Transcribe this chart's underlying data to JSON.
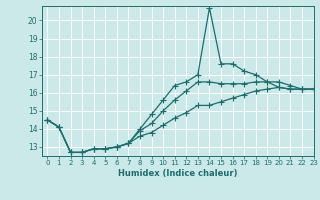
{
  "xlabel": "Humidex (Indice chaleur)",
  "xlim": [
    -0.5,
    23
  ],
  "ylim": [
    12.5,
    20.8
  ],
  "yticks": [
    13,
    14,
    15,
    16,
    17,
    18,
    19,
    20
  ],
  "xticks": [
    0,
    1,
    2,
    3,
    4,
    5,
    6,
    7,
    8,
    9,
    10,
    11,
    12,
    13,
    14,
    15,
    16,
    17,
    18,
    19,
    20,
    21,
    22,
    23
  ],
  "bg_color": "#cce9e9",
  "line_color": "#1a6e6e",
  "grid_color": "#ffffff",
  "series": {
    "upper": [
      14.5,
      14.1,
      12.7,
      12.7,
      12.9,
      12.9,
      13.0,
      13.2,
      14.0,
      14.8,
      15.6,
      16.4,
      16.6,
      17.0,
      20.7,
      17.6,
      17.6,
      17.2,
      17.0,
      16.6,
      16.3,
      16.2,
      16.2,
      16.2
    ],
    "mid": [
      14.5,
      14.1,
      12.7,
      12.7,
      12.9,
      12.9,
      13.0,
      13.2,
      13.9,
      14.3,
      15.0,
      15.6,
      16.1,
      16.6,
      16.6,
      16.5,
      16.5,
      16.5,
      16.6,
      16.6,
      16.6,
      16.4,
      16.2,
      16.2
    ],
    "lower": [
      14.5,
      14.1,
      12.7,
      12.7,
      12.9,
      12.9,
      13.0,
      13.2,
      13.6,
      13.8,
      14.2,
      14.6,
      14.9,
      15.3,
      15.3,
      15.5,
      15.7,
      15.9,
      16.1,
      16.2,
      16.3,
      16.2,
      16.2,
      16.2
    ]
  }
}
